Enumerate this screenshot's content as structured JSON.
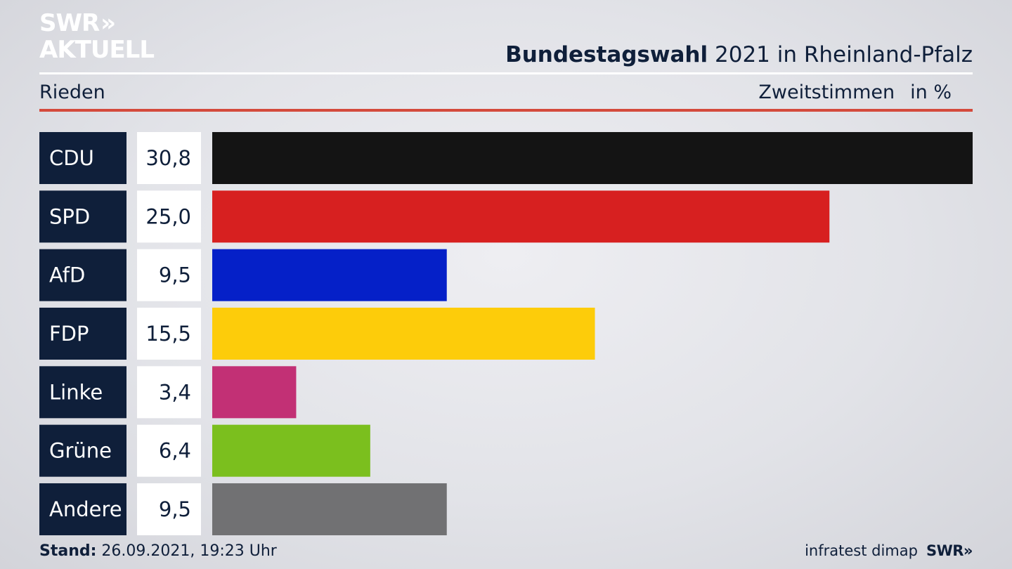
{
  "header": {
    "logo_line1": "SWR",
    "logo_chevrons": "»",
    "logo_line2": "AKTUELL",
    "title_bold": "Bundestagswahl",
    "title_rest": "2021 in Rheinland-Pfalz",
    "location": "Rieden",
    "measure": "Zweitstimmen",
    "unit": "in %"
  },
  "chart_data": {
    "type": "bar",
    "orientation": "horizontal",
    "categories": [
      "CDU",
      "SPD",
      "AfD",
      "FDP",
      "Linke",
      "Grüne",
      "Andere"
    ],
    "values": [
      30.8,
      25.0,
      9.5,
      15.5,
      3.4,
      6.4,
      9.5
    ],
    "value_labels": [
      "30,8",
      "25,0",
      "9,5",
      "15,5",
      "3,4",
      "6,4",
      "9,5"
    ],
    "colors": [
      "#141414",
      "#d72020",
      "#0520c8",
      "#fdcc0a",
      "#c23075",
      "#7bbf1e",
      "#717173"
    ],
    "xlim": [
      0,
      30.8
    ],
    "grid": false,
    "legend": "none"
  },
  "footer": {
    "stand_label": "Stand:",
    "stand_value": "26.09.2021, 19:23 Uhr",
    "source": "infratest dimap",
    "brand": "SWR»"
  },
  "colors": {
    "label_box": "#0f1f3a",
    "value_box": "#ffffff",
    "accent_rule": "#d44a3c"
  }
}
